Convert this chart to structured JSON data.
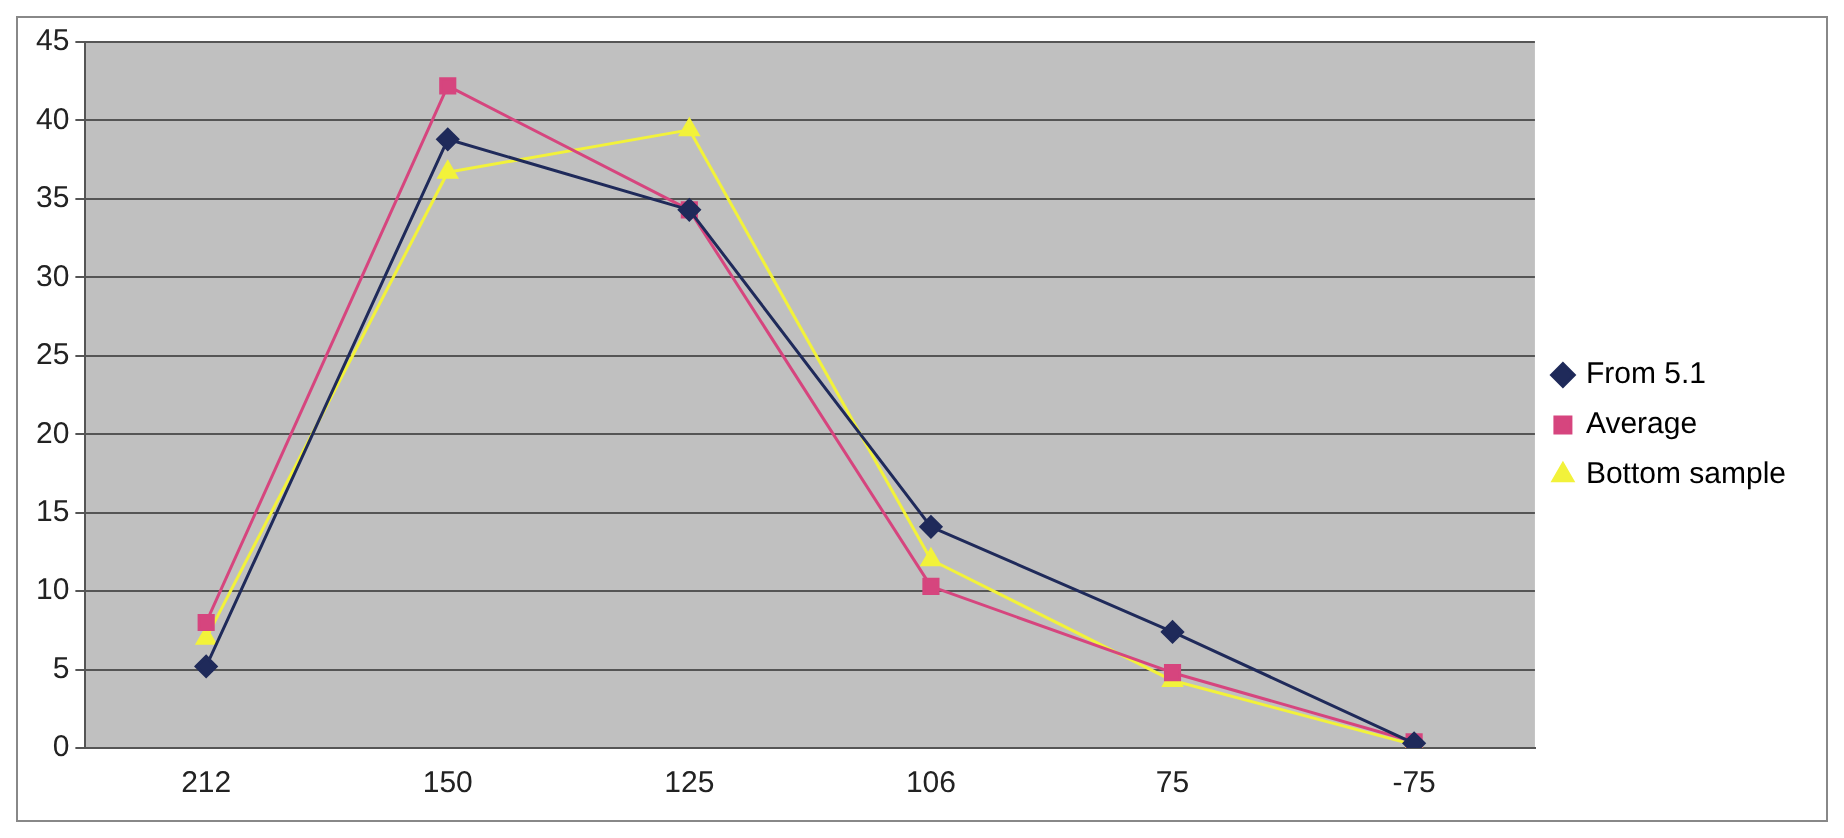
{
  "chart_data": {
    "type": "line",
    "categories": [
      "212",
      "150",
      "125",
      "106",
      "75",
      "-75"
    ],
    "series": [
      {
        "name": "From 5.1",
        "color": "#1f2a5a",
        "marker": "diamond",
        "values": [
          5.2,
          38.8,
          34.3,
          14.1,
          7.4,
          0.3
        ]
      },
      {
        "name": "Average",
        "color": "#d6457e",
        "marker": "square",
        "values": [
          8,
          42.2,
          34.3,
          10.3,
          4.8,
          0.4
        ]
      },
      {
        "name": "Bottom sample",
        "color": "#f2f23a",
        "marker": "triangle",
        "values": [
          7,
          36.7,
          39.4,
          12,
          4.3,
          0.2
        ]
      }
    ],
    "ylim": [
      0,
      45
    ],
    "yticks": [
      0,
      5,
      10,
      15,
      20,
      25,
      30,
      35,
      40,
      45
    ],
    "grid": "y",
    "legend": "right",
    "line_style": "solid"
  }
}
